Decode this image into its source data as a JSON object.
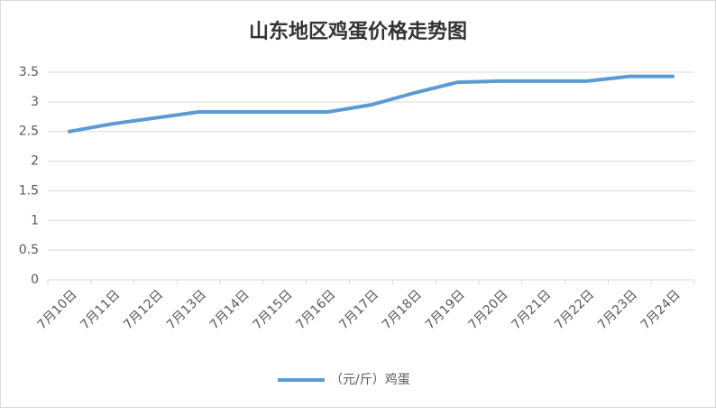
{
  "chart_data": {
    "type": "line",
    "title": "山东地区鸡蛋价格走势图",
    "categories": [
      "7月10日",
      "7月11日",
      "7月12日",
      "7月13日",
      "7月14日",
      "7月15日",
      "7月16日",
      "7月17日",
      "7月18日",
      "7月19日",
      "7月20日",
      "7月21日",
      "7月22日",
      "7月23日",
      "7月24日"
    ],
    "series": [
      {
        "name": "（元/斤）鸡蛋",
        "color": "#5b9bd5",
        "values": [
          2.5,
          2.63,
          2.73,
          2.83,
          2.83,
          2.83,
          2.83,
          2.95,
          3.15,
          3.33,
          3.35,
          3.35,
          3.35,
          3.43,
          3.43
        ]
      }
    ],
    "ylim": [
      0,
      3.5
    ],
    "yticks": [
      0,
      0.5,
      1,
      1.5,
      2,
      2.5,
      3,
      3.5
    ],
    "grid": true,
    "legend": "bottom"
  }
}
